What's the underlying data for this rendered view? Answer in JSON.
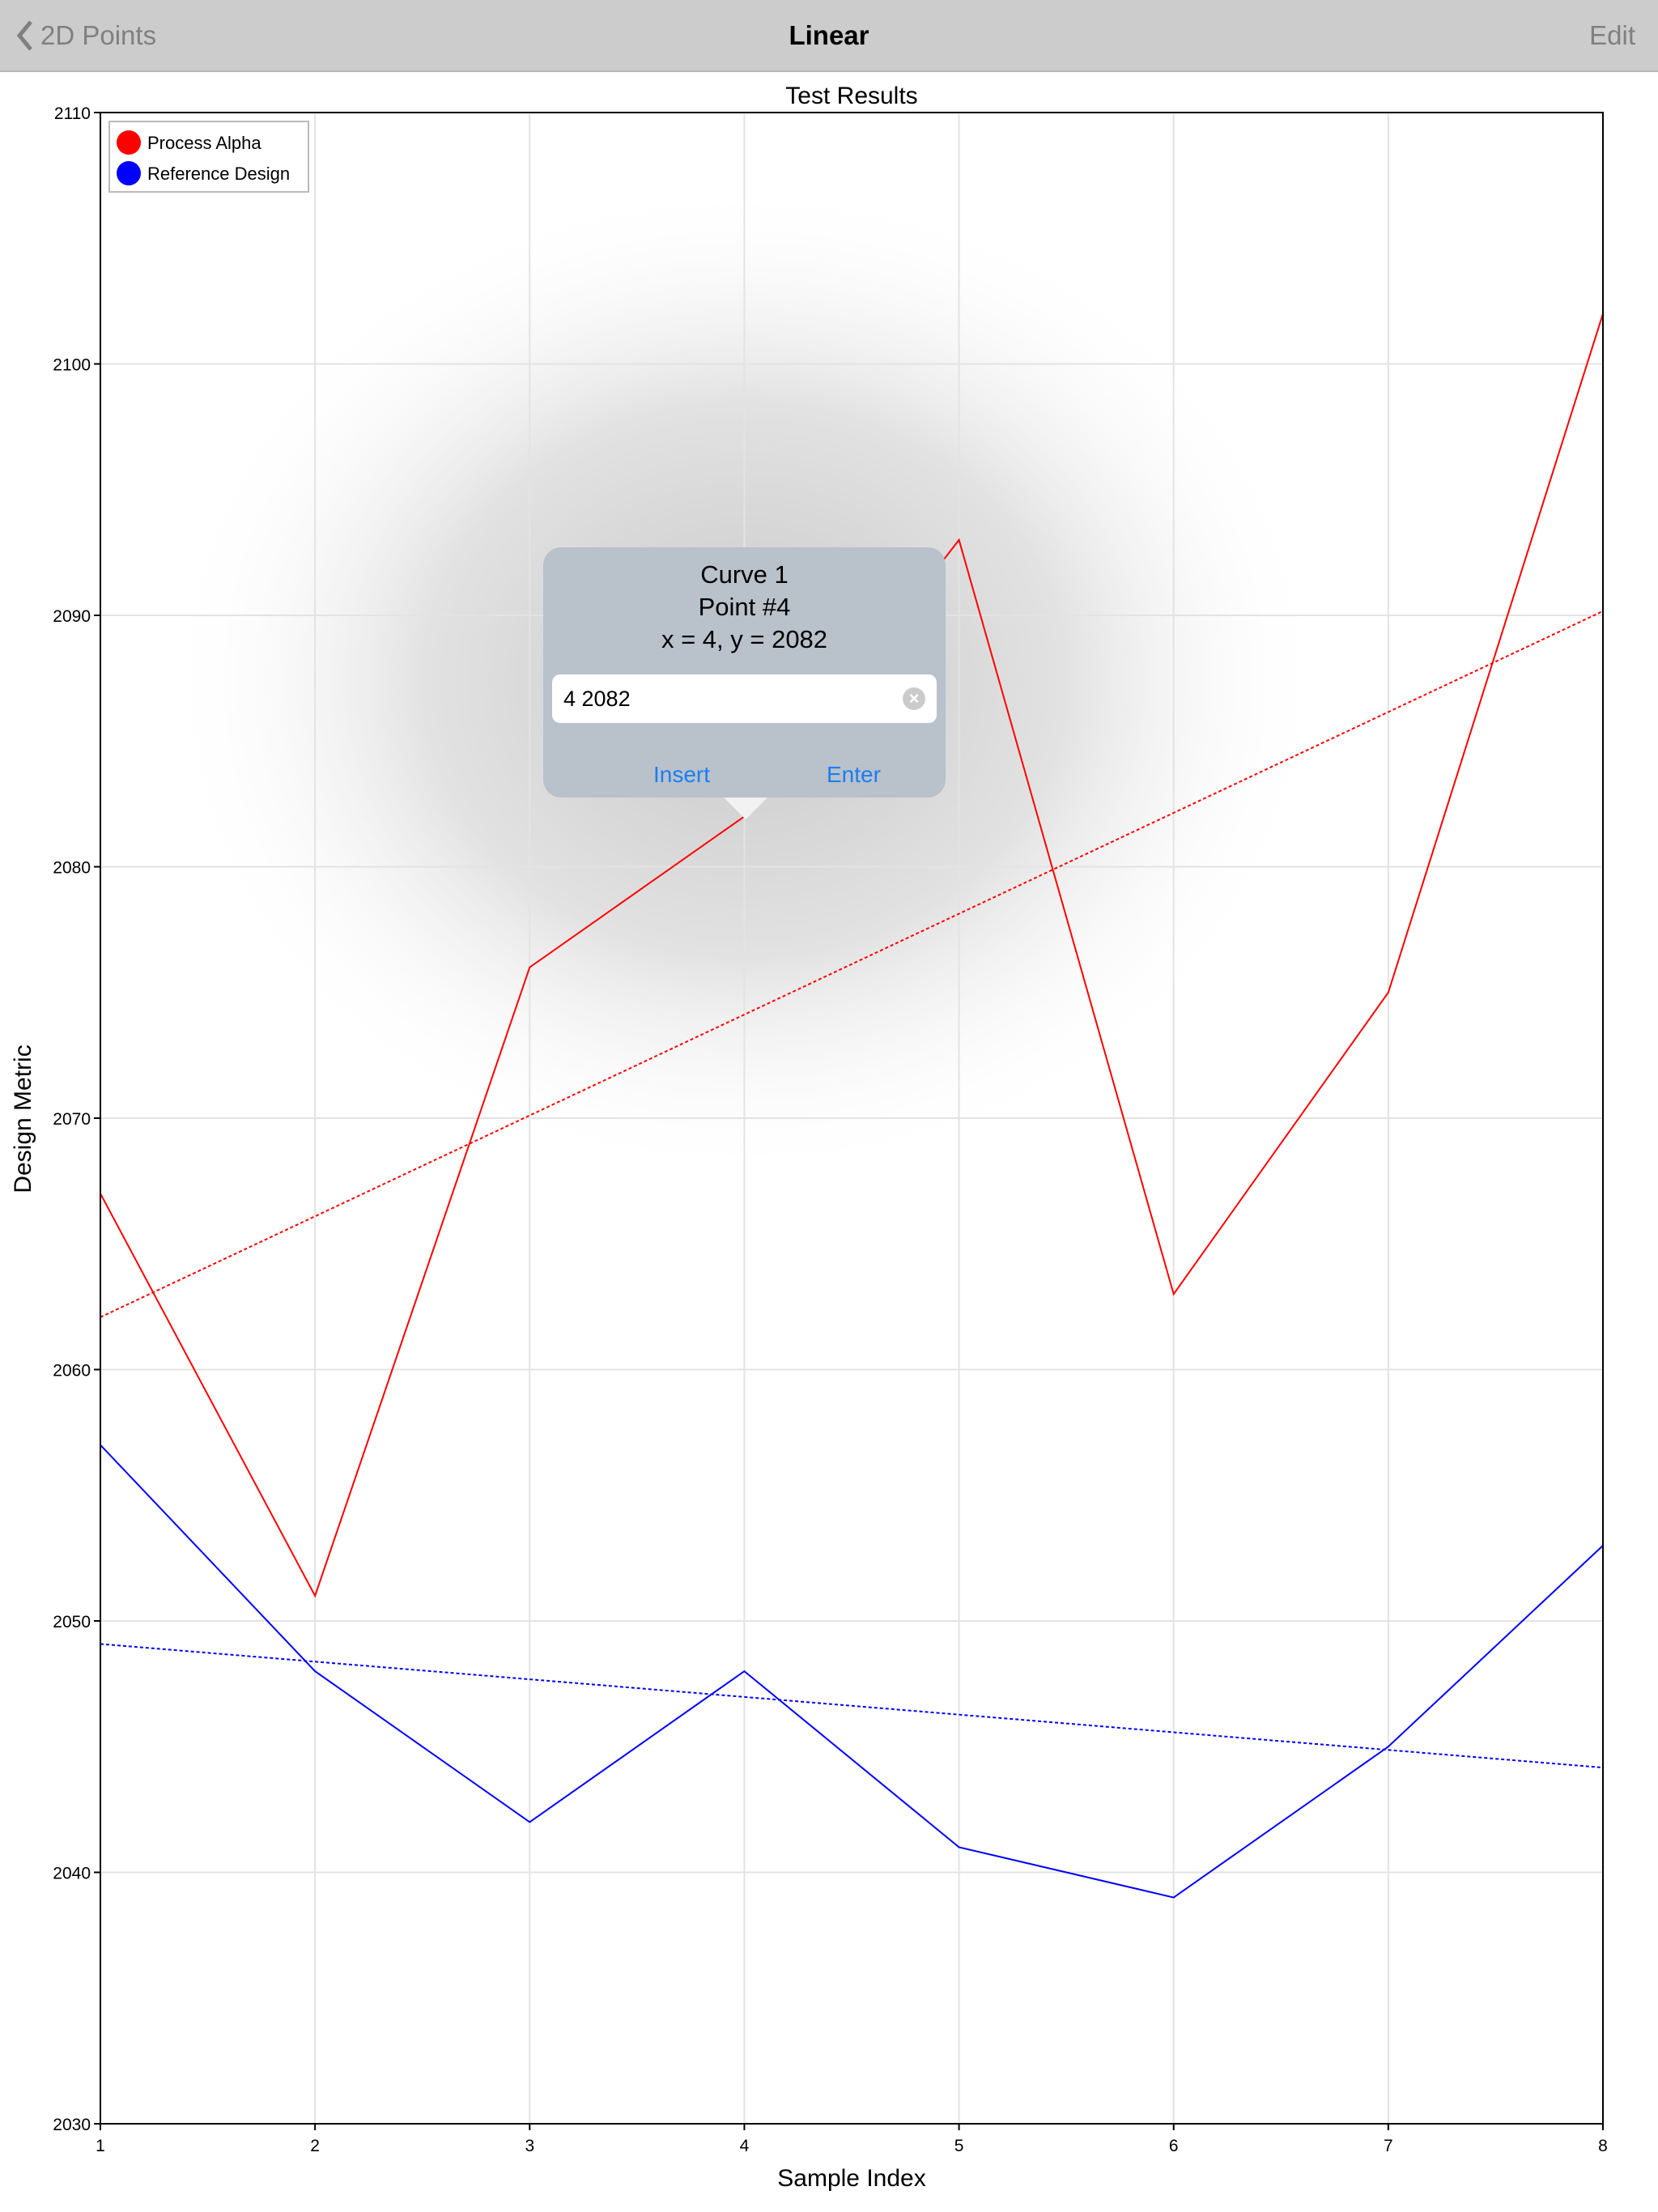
{
  "navbar": {
    "back_label": "2D Points",
    "title": "Linear",
    "edit_label": "Edit"
  },
  "popup": {
    "curve": "Curve 1",
    "point": "Point #4",
    "coords": "x = 4, y = 2082",
    "input_value": "4 2082",
    "insert_label": "Insert",
    "enter_label": "Enter"
  },
  "chart_data": {
    "type": "line",
    "title": "Test Results",
    "xlabel": "Sample Index",
    "ylabel": "Design Metric",
    "x": [
      1,
      2,
      3,
      4,
      5,
      6,
      7,
      8
    ],
    "xlim": [
      1,
      8
    ],
    "ylim": [
      2030,
      2110
    ],
    "xticks": [
      "1",
      "2",
      "3",
      "4",
      "5",
      "6",
      "7",
      "8"
    ],
    "yticks": [
      "2030",
      "2040",
      "2050",
      "2060",
      "2070",
      "2080",
      "2090",
      "2100",
      "2110"
    ],
    "grid": true,
    "legend": "top-left",
    "trendlines": "linear, dotted",
    "series": [
      {
        "name": "Process Alpha",
        "color": "#ff0000",
        "values": [
          2067,
          2051,
          2076,
          2082,
          2093,
          2063,
          2075,
          2102
        ]
      },
      {
        "name": "Reference Design",
        "color": "#0000ff",
        "values": [
          2057,
          2048,
          2042,
          2048,
          2041,
          2039,
          2045,
          2053
        ]
      }
    ]
  }
}
